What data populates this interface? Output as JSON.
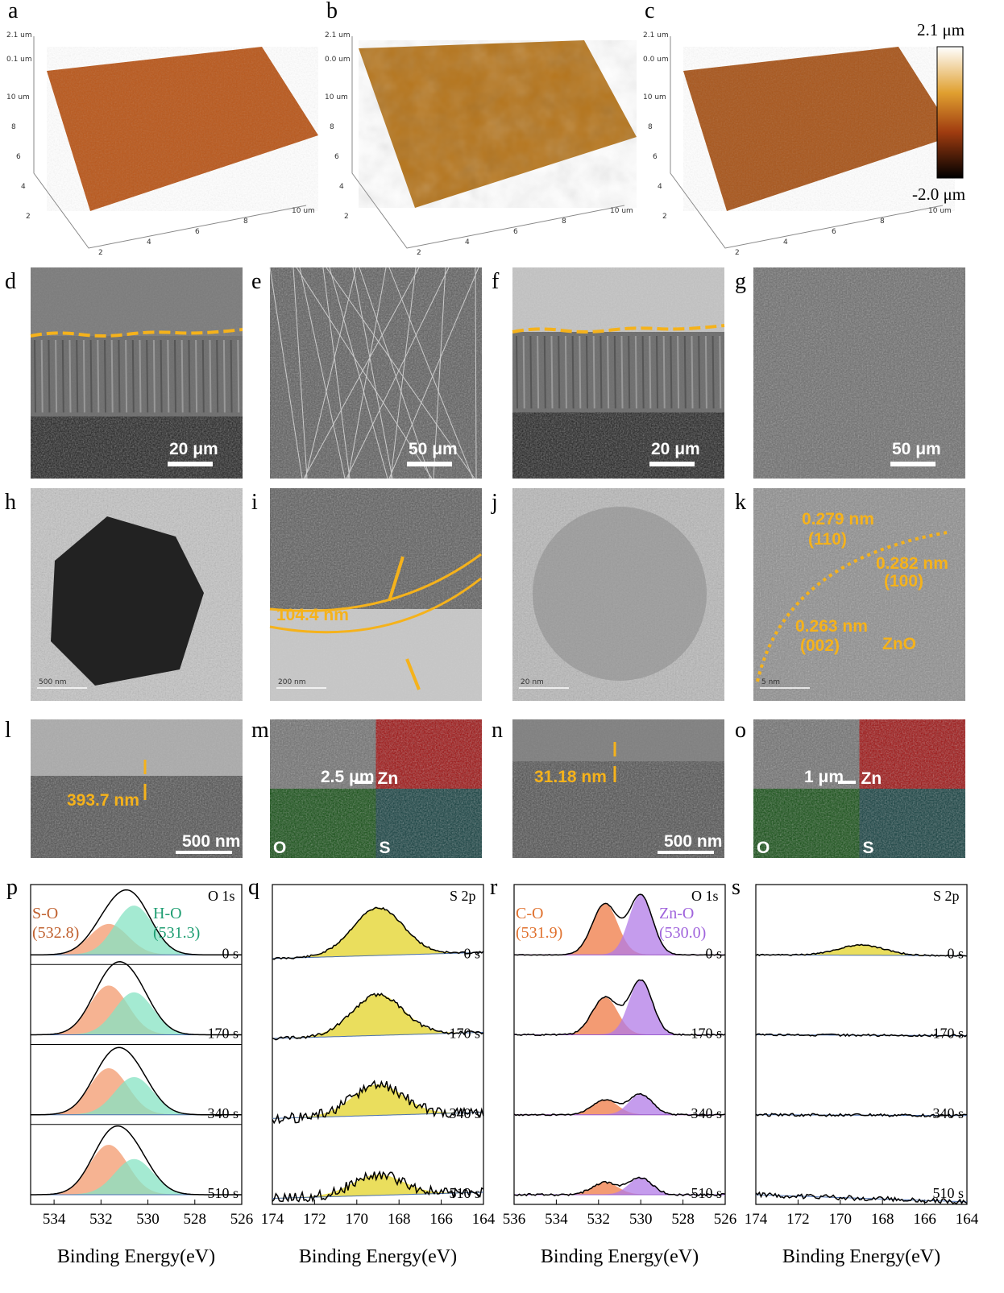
{
  "afm": [
    {
      "label": "a",
      "ztop": "2.1 um",
      "zmid": "0.1 um",
      "left": [
        "10 um",
        "8",
        "6",
        "4",
        "2"
      ],
      "bottom": [
        "2",
        "4",
        "6",
        "8",
        "10 um"
      ]
    },
    {
      "label": "b",
      "ztop": "2.1 um",
      "zmid": "0.0 um",
      "left": [
        "10 um",
        "8",
        "6",
        "4",
        "2"
      ],
      "bottom": [
        "2",
        "4",
        "6",
        "8",
        "10 um"
      ]
    },
    {
      "label": "c",
      "ztop": "2.1 um",
      "zmid": "0.0 um",
      "left": [
        "10 um",
        "8",
        "6",
        "4",
        "2"
      ],
      "bottom": [
        "2",
        "4",
        "6",
        "8",
        "10 um"
      ]
    }
  ],
  "colorbar": {
    "max": "2.1 μm",
    "min": "-2.0 μm"
  },
  "sem": [
    {
      "label": "d",
      "scale": "20 μm"
    },
    {
      "label": "e",
      "scale": "50 μm"
    },
    {
      "label": "f",
      "scale": "20 μm"
    },
    {
      "label": "g",
      "scale": "50 μm"
    }
  ],
  "tem": [
    {
      "label": "h",
      "scale": "500 nm"
    },
    {
      "label": "i",
      "scale": "200 nm",
      "thickness": "104.4 nm"
    },
    {
      "label": "j",
      "scale": "20 nm"
    },
    {
      "label": "k",
      "scale": "5 nm",
      "annotations": [
        "0.279 nm",
        "(110)",
        "0.282 nm",
        "(100)",
        "0.263 nm",
        "(002)",
        "ZnO"
      ]
    }
  ],
  "cross": [
    {
      "label": "l",
      "thickness": "393.7 nm",
      "scale": "500 nm"
    },
    {
      "label": "m",
      "scale": "2.5 μm",
      "maps": [
        "Zn",
        "O",
        "S"
      ]
    },
    {
      "label": "n",
      "thickness": "31.18 nm",
      "scale": "500 nm"
    },
    {
      "label": "o",
      "scale": "1 μm",
      "maps": [
        "Zn",
        "O",
        "S"
      ]
    }
  ],
  "xps": [
    {
      "label": "p",
      "region": "O 1s",
      "peaks": [
        {
          "name": "S-O",
          "position": "(532.8)"
        },
        {
          "name": "H-O",
          "position": "(531.3)"
        }
      ],
      "times": [
        "0 s",
        "170 s",
        "340 s",
        "510 s"
      ],
      "xlim": [
        535,
        526
      ],
      "xticks": [
        534,
        532,
        530,
        528,
        526
      ],
      "xlabel": "Binding Energy(eV)"
    },
    {
      "label": "q",
      "region": "S 2p",
      "times": [
        "0 s",
        "170 s",
        "340 s",
        "510 s"
      ],
      "xlim": [
        174,
        164
      ],
      "xticks": [
        174,
        172,
        170,
        168,
        166,
        164
      ],
      "xlabel": "Binding Energy(eV)"
    },
    {
      "label": "r",
      "region": "O 1s",
      "peaks": [
        {
          "name": "C-O",
          "position": "(531.9)"
        },
        {
          "name": "Zn-O",
          "position": "(530.0)"
        }
      ],
      "times": [
        "0 s",
        "170 s",
        "340 s",
        "510 s"
      ],
      "xlim": [
        536,
        526
      ],
      "xticks": [
        536,
        534,
        532,
        530,
        528,
        526
      ],
      "xlabel": "Binding Energy(eV)"
    },
    {
      "label": "s",
      "region": "S 2p",
      "times": [
        "0 s",
        "170 s",
        "340 s",
        "510 s"
      ],
      "xlim": [
        174,
        164
      ],
      "xticks": [
        174,
        172,
        170,
        168,
        166,
        164
      ],
      "xlabel": "Binding Energy(eV)"
    }
  ]
}
